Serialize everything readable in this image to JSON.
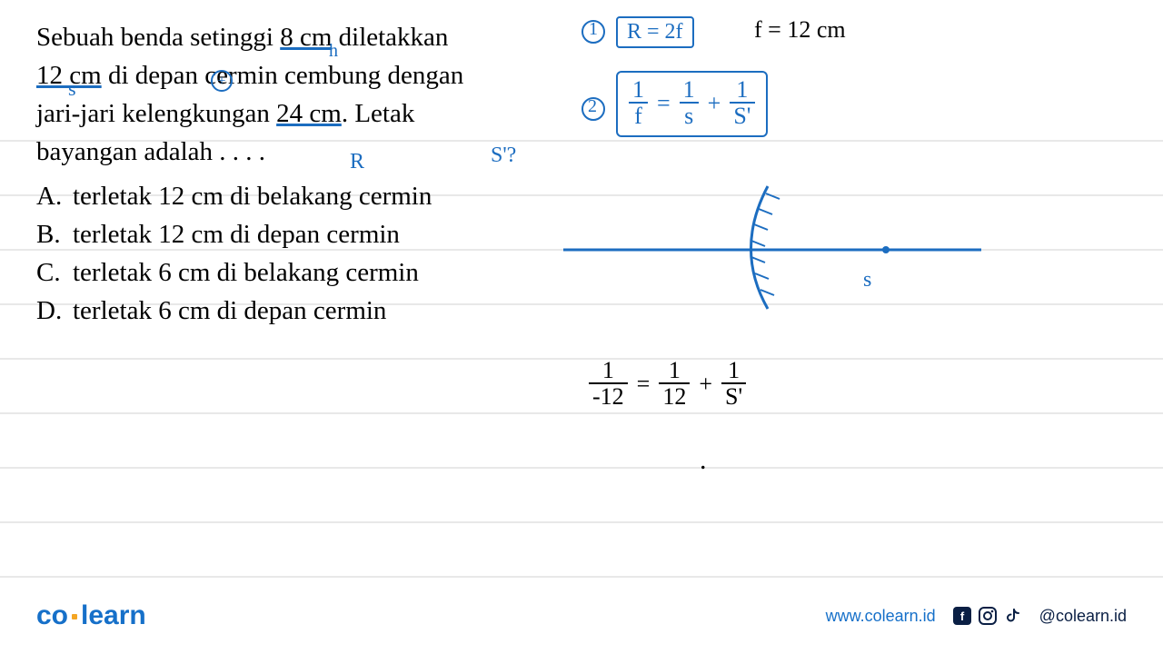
{
  "question": {
    "line1_a": "Sebuah benda setinggi ",
    "line1_b": "8 cm",
    "line1_c": " diletakkan",
    "line2_a": "12 cm",
    "line2_b": " di depan cermin cembung dengan",
    "line3_a": "jari-jari kelengkungan ",
    "line3_b": "24 cm",
    "line3_c": ". Letak",
    "line4": "bayangan adalah . . . .",
    "options": {
      "A": "terletak 12 cm di belakang cermin",
      "B": "terletak 12 cm di depan cermin",
      "C": "terletak 6 cm di belakang cermin",
      "D": "terletak 6 cm di depan cermin"
    }
  },
  "annotations": {
    "h": "h",
    "s": "s",
    "plus": "+",
    "R": "R",
    "sprime_q": "S'?",
    "circle1": "1",
    "R_eq": "R = 2f",
    "f_eq": "f = 12 cm",
    "circle2": "2",
    "mirror_eq": {
      "lhs_num": "1",
      "lhs_den": "f",
      "t1_num": "1",
      "t1_den": "s",
      "t2_num": "1",
      "t2_den": "S'"
    },
    "diagram_s": "s",
    "subst_eq": {
      "lhs_num": "1",
      "lhs_den": "-12",
      "t1_num": "1",
      "t1_den": "12",
      "t2_num": "1",
      "t2_den": "S'"
    },
    "dot": "."
  },
  "footer": {
    "logo_co": "co",
    "logo_learn": "learn",
    "url": "www.colearn.id",
    "handle": "@colearn.id"
  },
  "colors": {
    "ink": "#1c6dc0",
    "brand": "#1670c9",
    "accent": "#f5a623",
    "rule": "#d0d0d0",
    "darknav": "#0a1f44"
  },
  "ruled_lines_y": [
    155,
    215,
    275,
    335,
    395,
    455,
    515,
    575,
    635
  ]
}
